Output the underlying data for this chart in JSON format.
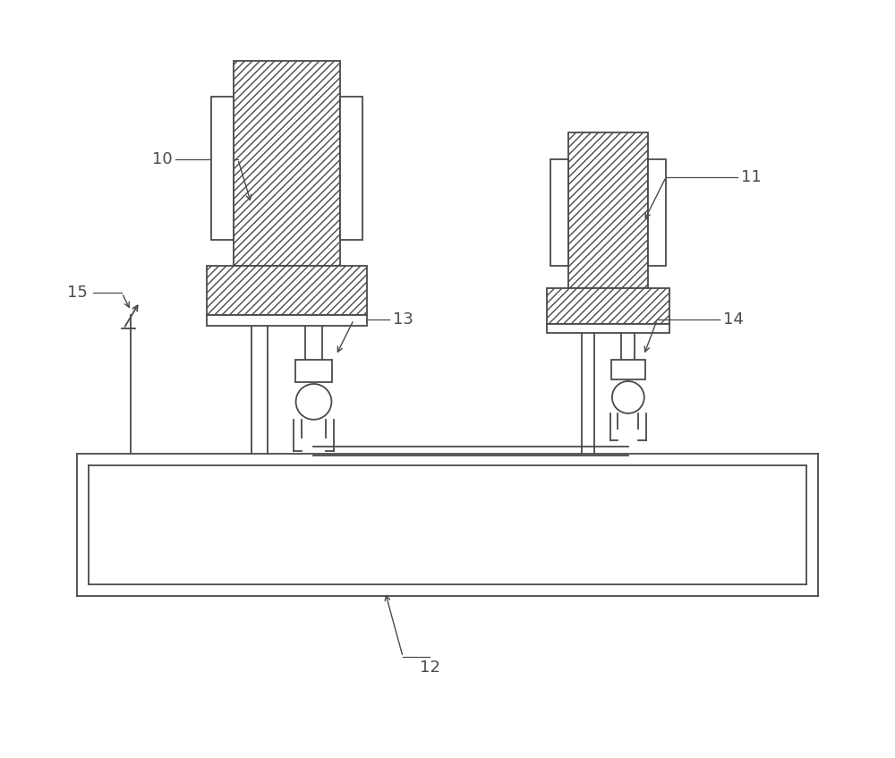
{
  "bg_color": "#ffffff",
  "line_color": "#4a4a4a",
  "fig_width": 10.0,
  "fig_height": 8.47,
  "hatch_density": "////",
  "lw": 1.3
}
